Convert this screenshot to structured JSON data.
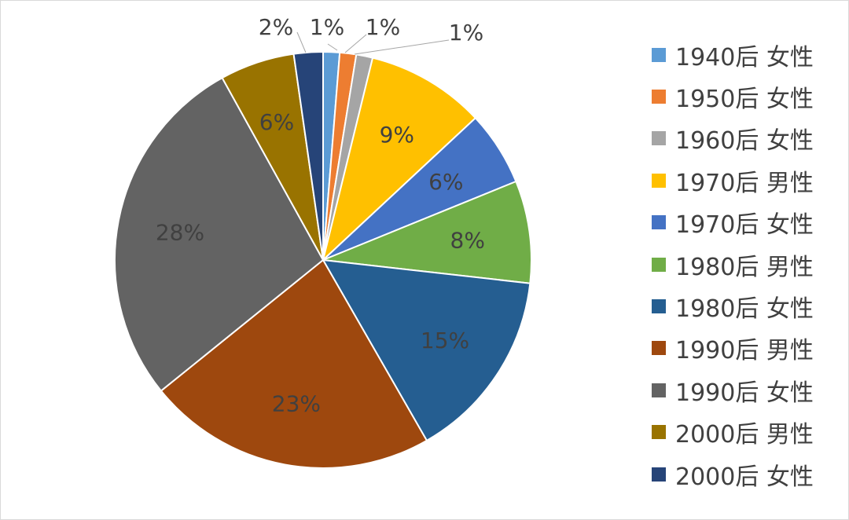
{
  "chart_data": {
    "type": "pie",
    "legend_position": "right",
    "slices": [
      {
        "label": "1940后 女性",
        "value": 1.3,
        "display": "1%",
        "color": "#5b9bd5"
      },
      {
        "label": "1950后 女性",
        "value": 1.3,
        "display": "1%",
        "color": "#ed7d31"
      },
      {
        "label": "1960后 女性",
        "value": 1.3,
        "display": "1%",
        "color": "#a5a5a5"
      },
      {
        "label": "1970后 男性",
        "value": 9.4,
        "display": "9%",
        "color": "#ffc000"
      },
      {
        "label": "1970后 女性",
        "value": 5.9,
        "display": "6%",
        "color": "#4472c4"
      },
      {
        "label": "1980后 男性",
        "value": 8.1,
        "display": "8%",
        "color": "#70ad47"
      },
      {
        "label": "1980后 女性",
        "value": 15.2,
        "display": "15%",
        "color": "#255e91"
      },
      {
        "label": "1990后 男性",
        "value": 22.9,
        "display": "23%",
        "color": "#9e480e"
      },
      {
        "label": "1990后 女性",
        "value": 28.3,
        "display": "28%",
        "color": "#636363"
      },
      {
        "label": "2000后 男性",
        "value": 5.9,
        "display": "6%",
        "color": "#997300"
      },
      {
        "label": "2000后 女性",
        "value": 2.3,
        "display": "2%",
        "color": "#264478"
      }
    ]
  }
}
